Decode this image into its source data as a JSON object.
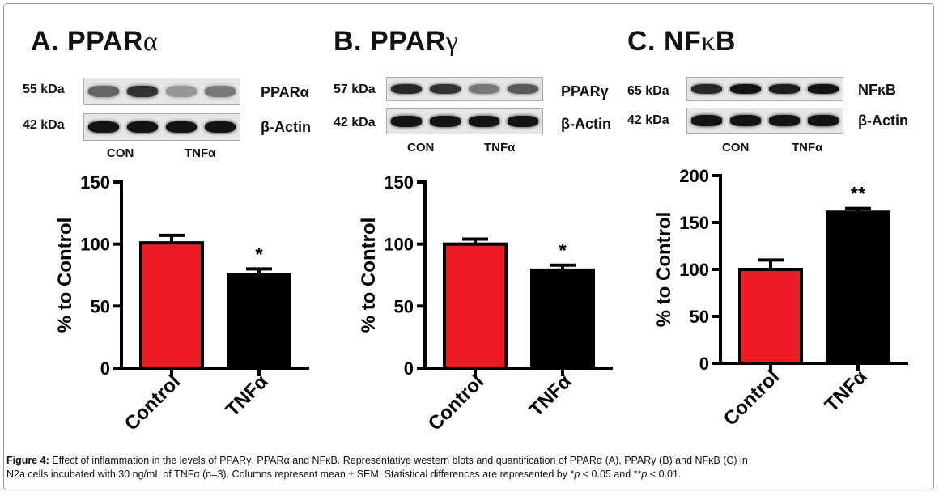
{
  "panels": [
    {
      "title_prefix": "A. PPAR",
      "title_greek": "α",
      "blot": {
        "target_kda": "55 kDa",
        "target_label": "PPARα",
        "actin_kda": "42 kDa",
        "actin_label": "β-Actin",
        "group_labels": [
          "CON",
          "TNFα"
        ],
        "target_band_intensity": [
          0.55,
          0.8,
          0.3,
          0.45
        ]
      }
    },
    {
      "title_prefix": "B. PPAR",
      "title_greek": "γ",
      "blot": {
        "target_kda": "57 kDa",
        "target_label": "PPARγ",
        "actin_kda": "42 kDa",
        "actin_label": "β-Actin",
        "group_labels": [
          "CON",
          "TNFα"
        ],
        "target_band_intensity": [
          0.85,
          0.8,
          0.45,
          0.6
        ]
      }
    },
    {
      "title_prefix": "C. NF",
      "title_greek": "κ",
      "title_suffix": "B",
      "blot": {
        "target_kda": "65 kDa",
        "target_label": "NFκB",
        "actin_kda": "42 kDa",
        "actin_label": "β-Actin",
        "group_labels": [
          "CON",
          "TNFα"
        ],
        "target_band_intensity": [
          0.85,
          0.95,
          0.9,
          0.95
        ]
      }
    }
  ],
  "chart_data": [
    {
      "type": "bar",
      "categories": [
        "Control",
        "TNFα"
      ],
      "values": [
        101,
        75
      ],
      "errors": [
        6,
        5
      ],
      "colors": [
        "#ed1c24",
        "#000000"
      ],
      "significance": [
        "",
        "*"
      ],
      "ylabel": "% to Control",
      "ylim": [
        0,
        150
      ],
      "yticks": [
        "0",
        "50",
        "100",
        "150"
      ]
    },
    {
      "type": "bar",
      "categories": [
        "Control",
        "TNFα"
      ],
      "values": [
        100,
        79
      ],
      "errors": [
        4,
        4
      ],
      "colors": [
        "#ed1c24",
        "#000000"
      ],
      "significance": [
        "",
        "*"
      ],
      "ylabel": "% to Control",
      "ylim": [
        0,
        150
      ],
      "yticks": [
        "0",
        "50",
        "100",
        "150"
      ]
    },
    {
      "type": "bar",
      "categories": [
        "Control",
        "TNFα"
      ],
      "values": [
        100,
        161
      ],
      "errors": [
        10,
        4
      ],
      "colors": [
        "#ed1c24",
        "#000000"
      ],
      "significance": [
        "",
        "**"
      ],
      "ylabel": "% to Control",
      "ylim": [
        0,
        200
      ],
      "yticks": [
        "0",
        "50",
        "100",
        "150",
        "200"
      ]
    }
  ],
  "caption": {
    "label": "Figure 4:",
    "line1": "Effect of inflammation in the levels of PPARγ, PPARα and NFκB. Representative western blots and quantification of PPARα (A), PPARγ (B) and NFκB (C) in",
    "line2_a": "N2a cells incubated with 30 ng/mL of TNFα (n=3). Columns represent mean ± SEM. Statistical differences are represented by *",
    "p1": "p",
    "line2_b": " < 0.05 and **",
    "p2": "p",
    "line2_c": " < 0.01."
  }
}
